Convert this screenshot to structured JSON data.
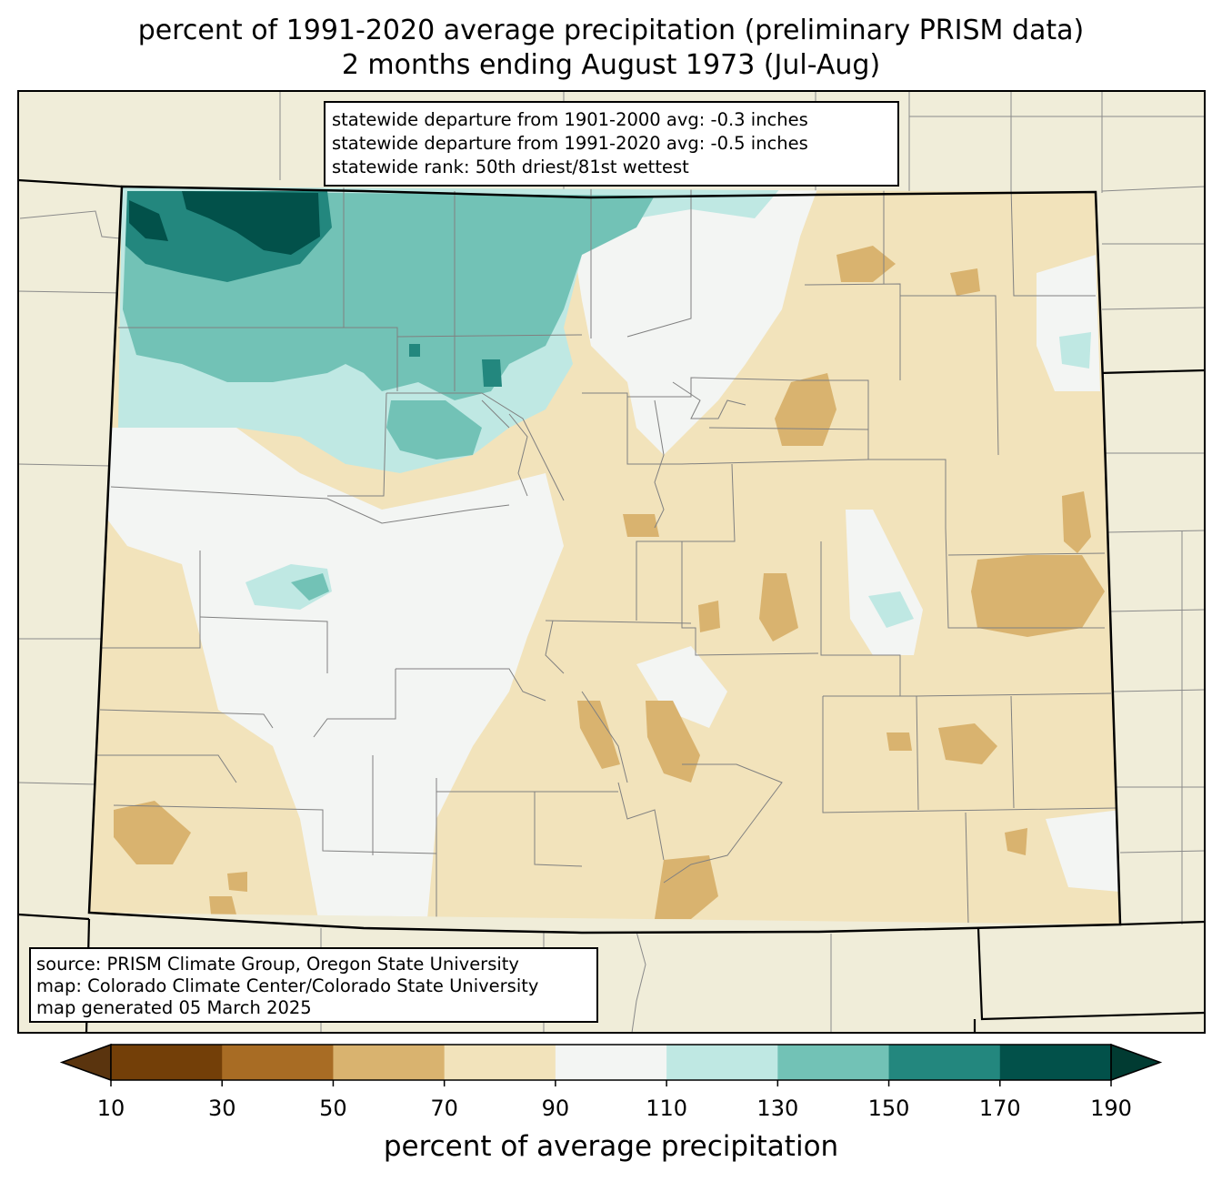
{
  "title": {
    "line1": "percent of 1991-2020 average precipitation (preliminary PRISM data)",
    "line2": "2 months ending August 1973 (Jul-Aug)"
  },
  "stats": [
    "statewide departure from 1901-2000 avg: -0.3 inches",
    "statewide departure from 1991-2020 avg: -0.5 inches",
    "statewide rank: 50th driest/81st wettest"
  ],
  "source": [
    "source: PRISM Climate Group, Oregon State University",
    "map: Colorado Climate Center/Colorado State University",
    "map generated 05 March 2025"
  ],
  "colorbar": {
    "label": "percent of average precipitation",
    "ticks": [
      "10",
      "30",
      "50",
      "70",
      "90",
      "110",
      "130",
      "150",
      "170",
      "190"
    ],
    "colors": [
      "#5a340e",
      "#733f08",
      "#a86c24",
      "#d9b36f",
      "#f2e3bb",
      "#f3f5f3",
      "#bfe8e3",
      "#72c2b6",
      "#23877e",
      "#02514a",
      "#013b32"
    ]
  },
  "colors": {
    "background": "#f0edd9",
    "state_fill": "#f2e3bb"
  }
}
